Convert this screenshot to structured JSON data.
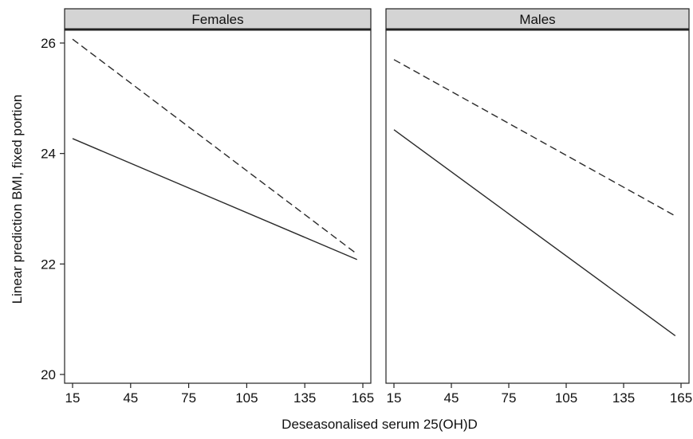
{
  "chart_data": {
    "type": "line",
    "xlabel": "Deseasonalised serum 25(OH)D",
    "ylabel": "Linear prediction BMI, fixed portion",
    "xlim": [
      15,
      165
    ],
    "ylim": [
      20,
      26
    ],
    "xticks": [
      15,
      45,
      75,
      105,
      135,
      165
    ],
    "yticks": [
      20,
      22,
      24,
      26
    ],
    "line_styles": [
      "solid",
      "dashed"
    ],
    "panels": [
      {
        "title": "Females",
        "series": [
          {
            "style": "solid",
            "x": [
              15,
              162
            ],
            "y": [
              24.27,
              22.08
            ]
          },
          {
            "style": "dashed",
            "x": [
              15,
              162
            ],
            "y": [
              26.07,
              22.18
            ]
          }
        ]
      },
      {
        "title": "Males",
        "series": [
          {
            "style": "solid",
            "x": [
              15,
              162
            ],
            "y": [
              24.43,
              20.7
            ]
          },
          {
            "style": "dashed",
            "x": [
              15,
              162
            ],
            "y": [
              25.7,
              22.87
            ]
          }
        ]
      }
    ]
  }
}
